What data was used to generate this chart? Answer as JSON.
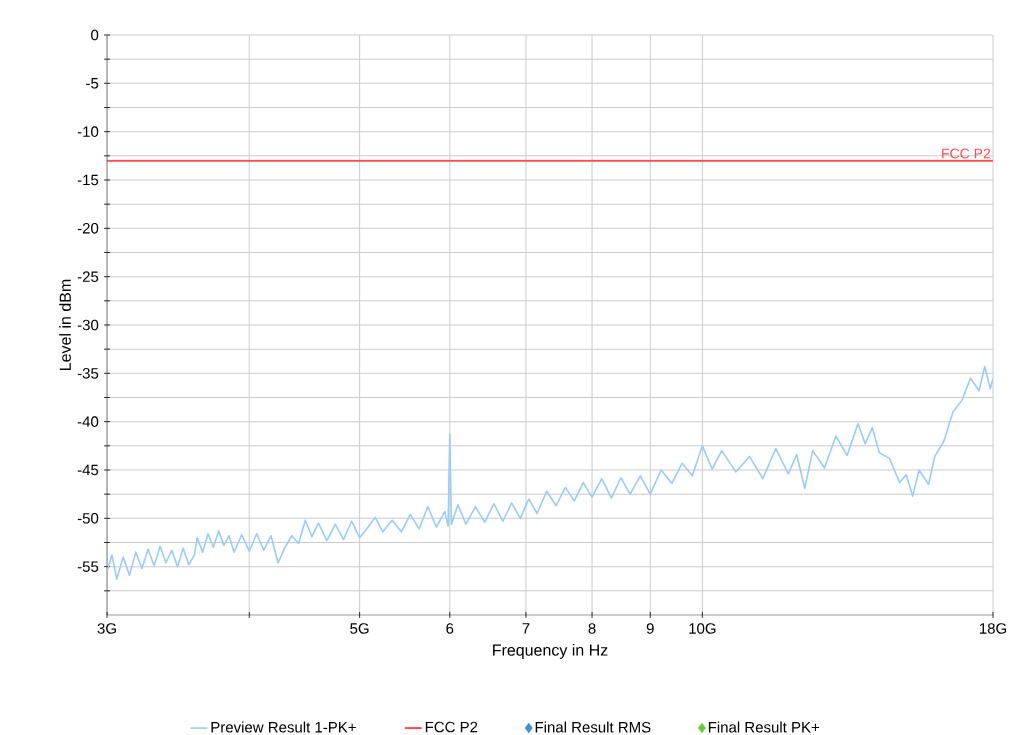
{
  "chart_data": {
    "type": "line",
    "xlabel": "Frequency in Hz",
    "ylabel": "Level in dBm",
    "log": "x",
    "grid": true,
    "legend": "bottom",
    "xlim": [
      3,
      18
    ],
    "xticks": [
      {
        "value": 3,
        "label": "3G"
      },
      {
        "value": 4,
        "label": null
      },
      {
        "value": 5,
        "label": "5G"
      },
      6,
      7,
      8,
      9,
      {
        "value": 10,
        "label": "10G"
      },
      {
        "value": 18,
        "label": "18G"
      }
    ],
    "ylim": [
      -60,
      0
    ],
    "yticks": [
      0,
      {
        "value": -2.5,
        "label": null
      },
      -5,
      {
        "value": -7.5,
        "label": null
      },
      -10,
      {
        "value": -12.5,
        "label": null
      },
      -15,
      {
        "value": -17.5,
        "label": null
      },
      -20,
      {
        "value": -22.5,
        "label": null
      },
      -25,
      {
        "value": -27.5,
        "label": null
      },
      -30,
      {
        "value": -32.5,
        "label": null
      },
      -35,
      {
        "value": -37.5,
        "label": null
      },
      -40,
      {
        "value": -42.5,
        "label": null
      },
      -45,
      {
        "value": -47.5,
        "label": null
      },
      -50,
      {
        "value": -52.5,
        "label": null
      },
      -55,
      {
        "value": -57.5,
        "label": null
      }
    ],
    "annotations": [
      {
        "text": "FCC P2",
        "x": 18,
        "y": -13
      }
    ],
    "series": [
      {
        "name": "Preview Result 1-PK+",
        "color": "#99ccff",
        "x": [
          3.0,
          3.03,
          3.06,
          3.1,
          3.14,
          3.18,
          3.22,
          3.26,
          3.3,
          3.34,
          3.38,
          3.42,
          3.46,
          3.5,
          3.54,
          3.58,
          3.6,
          3.64,
          3.68,
          3.72,
          3.76,
          3.8,
          3.84,
          3.88,
          3.94,
          4.0,
          4.06,
          4.12,
          4.18,
          4.24,
          4.3,
          4.36,
          4.42,
          4.48,
          4.54,
          4.6,
          4.68,
          4.76,
          4.84,
          4.92,
          5.0,
          5.08,
          5.16,
          5.24,
          5.34,
          5.44,
          5.54,
          5.64,
          5.74,
          5.84,
          5.94,
          5.98,
          6.0,
          6.02,
          6.1,
          6.2,
          6.32,
          6.44,
          6.56,
          6.68,
          6.8,
          6.92,
          7.04,
          7.16,
          7.3,
          7.44,
          7.58,
          7.72,
          7.86,
          8.0,
          8.16,
          8.32,
          8.48,
          8.64,
          8.82,
          9.0,
          9.2,
          9.4,
          9.6,
          9.8,
          10.0,
          10.2,
          10.4,
          10.7,
          11.0,
          11.3,
          11.6,
          11.9,
          12.1,
          12.3,
          12.5,
          12.8,
          13.1,
          13.4,
          13.7,
          13.9,
          14.1,
          14.3,
          14.6,
          14.9,
          15.1,
          15.3,
          15.5,
          15.8,
          16.0,
          16.3,
          16.6,
          16.9,
          17.2,
          17.5,
          17.7,
          17.9,
          18.0
        ],
        "values": [
          -55.5,
          -53.8,
          -56.3,
          -54.0,
          -55.9,
          -53.5,
          -55.2,
          -53.2,
          -54.9,
          -52.9,
          -54.6,
          -53.3,
          -55.0,
          -53.1,
          -54.8,
          -53.8,
          -52.0,
          -53.5,
          -51.6,
          -53.0,
          -51.3,
          -52.8,
          -51.8,
          -53.5,
          -51.7,
          -53.4,
          -51.6,
          -53.3,
          -51.8,
          -54.6,
          -53.0,
          -51.8,
          -52.6,
          -50.2,
          -51.9,
          -50.5,
          -52.3,
          -50.6,
          -52.2,
          -50.3,
          -52.0,
          -51.0,
          -49.9,
          -51.4,
          -50.2,
          -51.4,
          -49.6,
          -51.1,
          -48.8,
          -50.9,
          -49.3,
          -50.8,
          -41.3,
          -50.6,
          -48.6,
          -50.6,
          -48.8,
          -50.4,
          -48.5,
          -50.3,
          -48.4,
          -50.0,
          -48.0,
          -49.5,
          -47.2,
          -48.7,
          -46.8,
          -48.2,
          -46.3,
          -47.8,
          -45.9,
          -47.9,
          -45.8,
          -47.5,
          -45.6,
          -47.5,
          -45.0,
          -46.4,
          -44.3,
          -45.6,
          -42.5,
          -44.9,
          -43.0,
          -45.2,
          -43.6,
          -45.9,
          -42.8,
          -45.4,
          -43.4,
          -46.9,
          -43.0,
          -44.8,
          -41.5,
          -43.5,
          -40.2,
          -42.3,
          -40.6,
          -43.2,
          -43.8,
          -46.3,
          -45.5,
          -47.7,
          -45.0,
          -46.5,
          -43.6,
          -42.0,
          -39.0,
          -37.8,
          -35.5,
          -36.8,
          -34.3,
          -36.6,
          -35.5
        ]
      },
      {
        "name": "FCC P2",
        "color": "#ff4d4d",
        "x": [
          3,
          18
        ],
        "values": [
          -13,
          -13
        ]
      },
      {
        "name": "Final  Result RMS",
        "type": "scatter",
        "marker": "diamond",
        "color": "#3d8fd6"
      },
      {
        "name": "Final  Result PK+",
        "type": "scatter",
        "marker": "diamond",
        "color": "#66cc33"
      }
    ]
  }
}
